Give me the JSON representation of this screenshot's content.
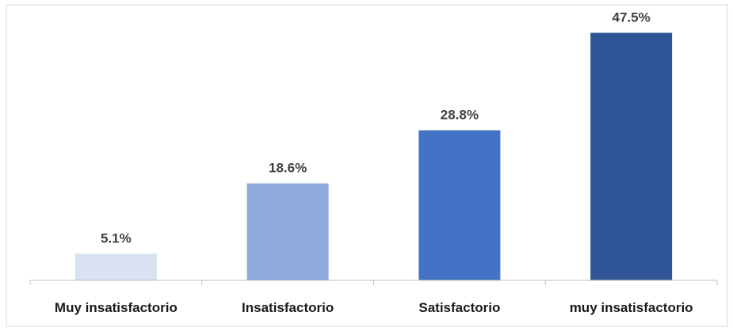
{
  "chart_data": {
    "type": "bar",
    "categories": [
      "Muy insatisfactorio",
      "Insatisfactorio",
      "Satisfactorio",
      "muy insatisfactorio"
    ],
    "values": [
      5.1,
      18.6,
      28.8,
      47.5
    ],
    "value_labels": [
      "5.1%",
      "18.6%",
      "28.8%",
      "47.5%"
    ],
    "bar_colors": [
      "#d9e1f2",
      "#8faadc",
      "#4472c4",
      "#2f5597"
    ],
    "title": "",
    "xlabel": "",
    "ylabel": "",
    "ylim": [
      0,
      50
    ],
    "grid": false,
    "legend": "none"
  }
}
